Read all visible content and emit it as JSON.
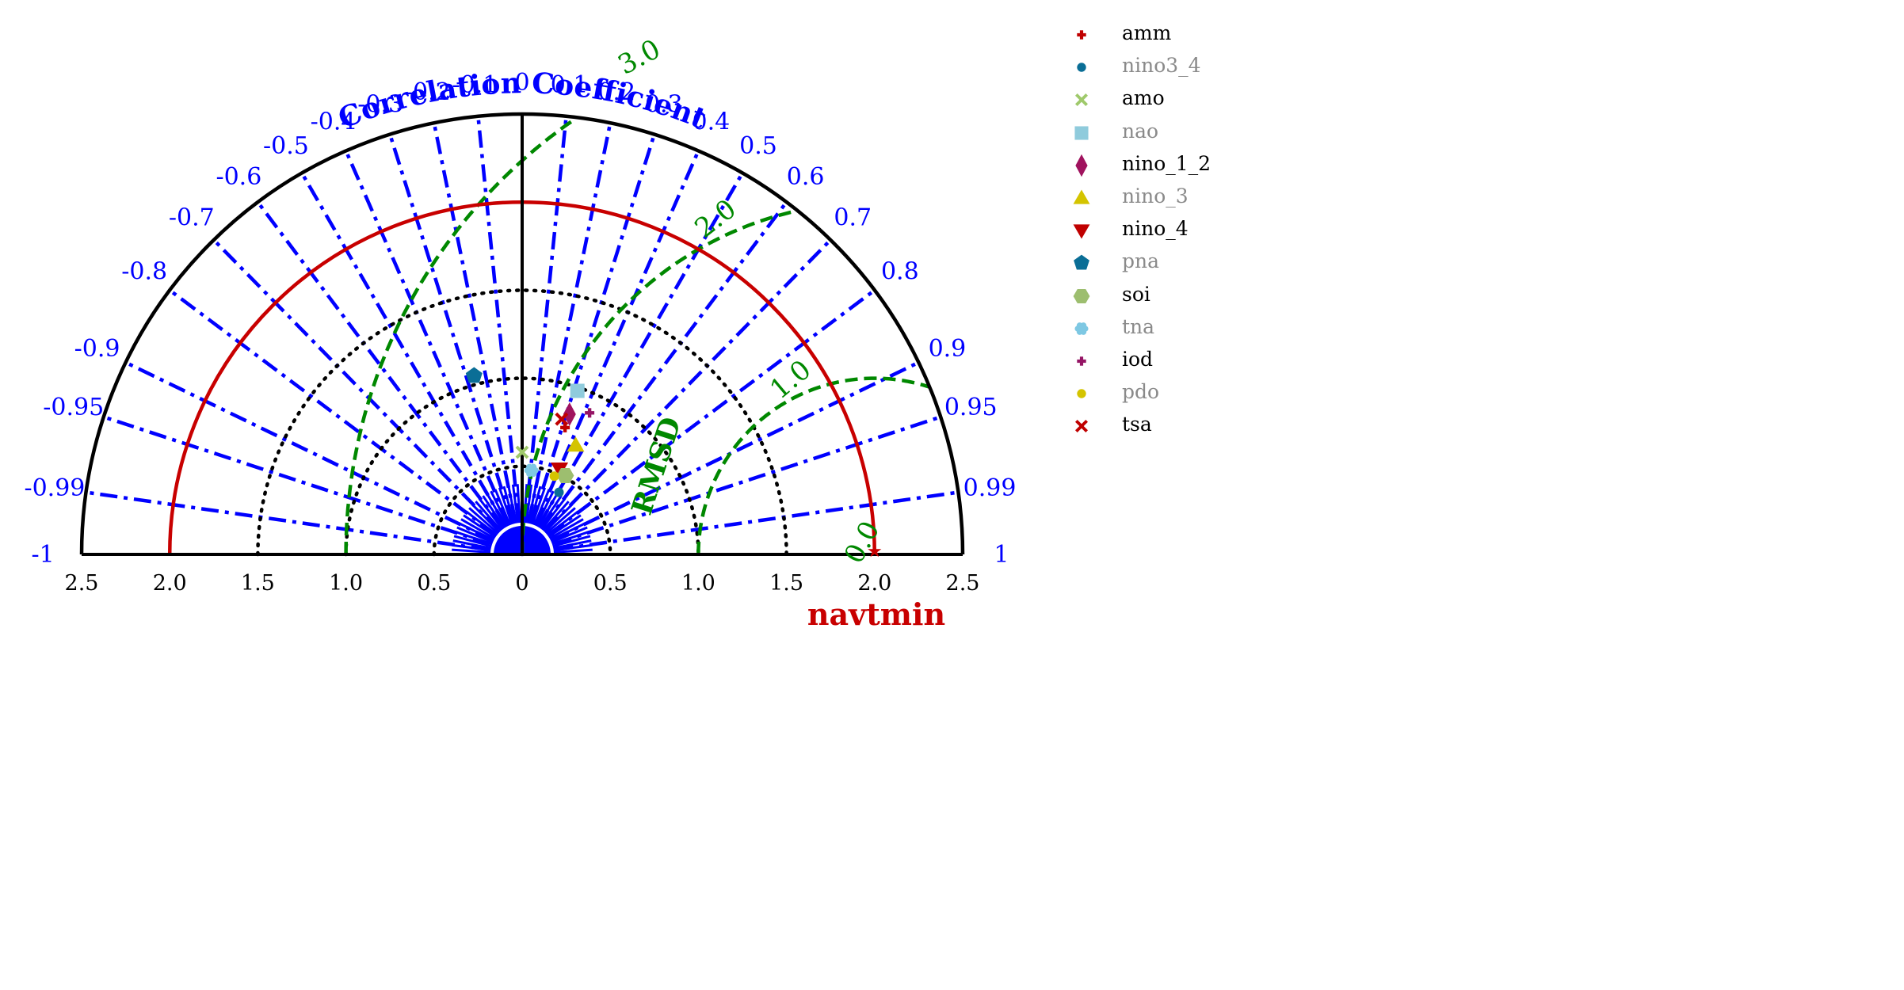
{
  "chart_data": {
    "type": "taylor diagram",
    "title": "Correlation Coefficient",
    "xlabel": "navtmin",
    "rmsd_label": "RMSD",
    "reference_std": 2.0,
    "std_max": 2.5,
    "std_ticks": [
      "2.5",
      "2.0",
      "1.5",
      "1.0",
      "0.5",
      "0",
      "0.5",
      "1.0",
      "1.5",
      "2.0",
      "2.5"
    ],
    "correlation_ticks": [
      -1,
      -0.99,
      -0.95,
      -0.9,
      -0.8,
      -0.7,
      -0.6,
      -0.5,
      -0.4,
      -0.3,
      -0.2,
      -0.1,
      0,
      0.1,
      0.2,
      0.3,
      0.4,
      0.5,
      0.6,
      0.7,
      0.8,
      0.9,
      0.95,
      0.99,
      1
    ],
    "correlation_tick_labels": [
      "-1",
      "-0.99",
      "-0.95",
      "-0.9",
      "-0.8",
      "-0.7",
      "-0.6",
      "-0.5",
      "-0.4",
      "-0.3",
      "-0.2",
      "-0.1",
      "0",
      "0.1",
      "0.2",
      "0.3",
      "0.4",
      "0.5",
      "0.6",
      "0.7",
      "0.8",
      "0.9",
      "0.95",
      "0.99",
      "1"
    ],
    "std_contours": [
      0.5,
      1.0,
      1.5
    ],
    "rmsd_contours": [
      {
        "value": 0.0,
        "label": "0.0"
      },
      {
        "value": 1.0,
        "label": "1.0"
      },
      {
        "value": 2.0,
        "label": "2.0"
      },
      {
        "value": 3.0,
        "label": "3.0"
      }
    ],
    "reference_point": {
      "name": "navtmin",
      "std": 2.0,
      "correlation": 1.0
    },
    "points": [
      {
        "name": "amm",
        "std": 0.76,
        "correlation": 0.32,
        "marker": "plus",
        "color": "#c00000"
      },
      {
        "name": "nino3_4",
        "std": 0.41,
        "correlation": 0.51,
        "marker": "circle",
        "color": "#0a6e96"
      },
      {
        "name": "amo",
        "std": 0.58,
        "correlation": 0.0,
        "marker": "x",
        "color": "#9fc96b"
      },
      {
        "name": "nao",
        "std": 0.98,
        "correlation": 0.32,
        "marker": "square",
        "color": "#8fcbdc"
      },
      {
        "name": "nino_1_2",
        "std": 0.84,
        "correlation": 0.32,
        "marker": "diamond",
        "color": "#a0135e"
      },
      {
        "name": "nino_3",
        "std": 0.69,
        "correlation": 0.44,
        "marker": "triangle",
        "color": "#d4c400"
      },
      {
        "name": "nino_4",
        "std": 0.53,
        "correlation": 0.4,
        "marker": "tri-down",
        "color": "#c00000"
      },
      {
        "name": "pna",
        "std": 1.05,
        "correlation": -0.26,
        "marker": "pentagon",
        "color": "#0a6e96"
      },
      {
        "name": "soi",
        "std": 0.51,
        "correlation": 0.48,
        "marker": "hexagon",
        "color": "#9dbe6f"
      },
      {
        "name": "tna",
        "std": 0.48,
        "correlation": 0.11,
        "marker": "flower",
        "color": "#7ec8e3"
      },
      {
        "name": "iod",
        "std": 0.89,
        "correlation": 0.43,
        "marker": "plus",
        "color": "#951565"
      },
      {
        "name": "pdo",
        "std": 0.48,
        "correlation": 0.38,
        "marker": "circle",
        "color": "#d4c400"
      },
      {
        "name": "tsa",
        "std": 0.8,
        "correlation": 0.28,
        "marker": "x",
        "color": "#c00000"
      }
    ]
  },
  "legend": {
    "items": [
      {
        "label": "amm",
        "marker": "plus",
        "color": "#c00000",
        "text_color": "#000000"
      },
      {
        "label": "nino3_4",
        "marker": "circle",
        "color": "#0a6e96",
        "text_color": "#8a8a8a"
      },
      {
        "label": "amo",
        "marker": "x",
        "color": "#9fc96b",
        "text_color": "#000000"
      },
      {
        "label": "nao",
        "marker": "square",
        "color": "#8fcbdc",
        "text_color": "#8a8a8a"
      },
      {
        "label": "nino_1_2",
        "marker": "diamond",
        "color": "#a0135e",
        "text_color": "#000000"
      },
      {
        "label": "nino_3",
        "marker": "triangle",
        "color": "#d4c400",
        "text_color": "#8a8a8a"
      },
      {
        "label": "nino_4",
        "marker": "tri-down",
        "color": "#c00000",
        "text_color": "#000000"
      },
      {
        "label": "pna",
        "marker": "pentagon",
        "color": "#0a6e96",
        "text_color": "#8a8a8a"
      },
      {
        "label": "soi",
        "marker": "hexagon",
        "color": "#9dbe6f",
        "text_color": "#000000"
      },
      {
        "label": "tna",
        "marker": "flower",
        "color": "#7ec8e3",
        "text_color": "#8a8a8a"
      },
      {
        "label": "iod",
        "marker": "plus",
        "color": "#951565",
        "text_color": "#000000"
      },
      {
        "label": "pdo",
        "marker": "circle",
        "color": "#d4c400",
        "text_color": "#8a8a8a"
      },
      {
        "label": "tsa",
        "marker": "x",
        "color": "#c00000",
        "text_color": "#000000"
      }
    ]
  },
  "colors": {
    "correlation": "#0000ff",
    "rmsd": "#008800",
    "reference": "#c80000",
    "std": "#000000"
  }
}
